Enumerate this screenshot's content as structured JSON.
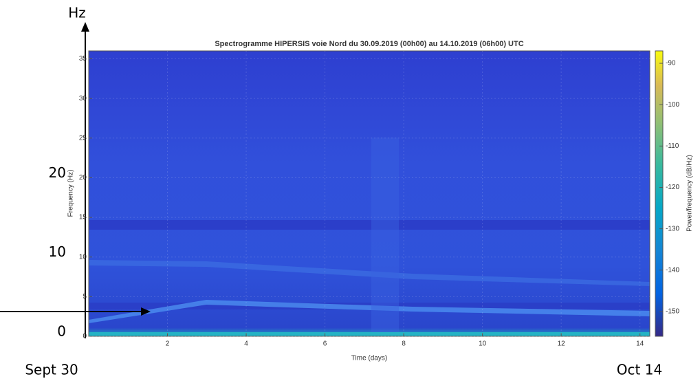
{
  "chart_data": {
    "type": "spectrogram",
    "title": "Spectrogramme HIPERSIS voie Nord du 30.09.2019 (00h00) au 14.10.2019 (06h00) UTC",
    "xlabel": "Time (days)",
    "ylabel": "Frequency (Hz)",
    "xlim": [
      0,
      14.25
    ],
    "ylim": [
      0,
      36
    ],
    "xticks": [
      2,
      4,
      6,
      8,
      10,
      12,
      14
    ],
    "yticks": [
      0,
      5,
      10,
      15,
      20,
      25,
      30,
      35
    ],
    "colorbar": {
      "label": "Power/frequency (dB/Hz)",
      "lim": [
        -156,
        -87
      ],
      "ticks": [
        -150,
        -140,
        -130,
        -120,
        -110,
        -100,
        -90
      ]
    },
    "annotations": {
      "unit": "Hz",
      "y_marks": [
        20,
        10,
        0
      ],
      "start": "Sept 30",
      "end": "Oct 14"
    }
  }
}
